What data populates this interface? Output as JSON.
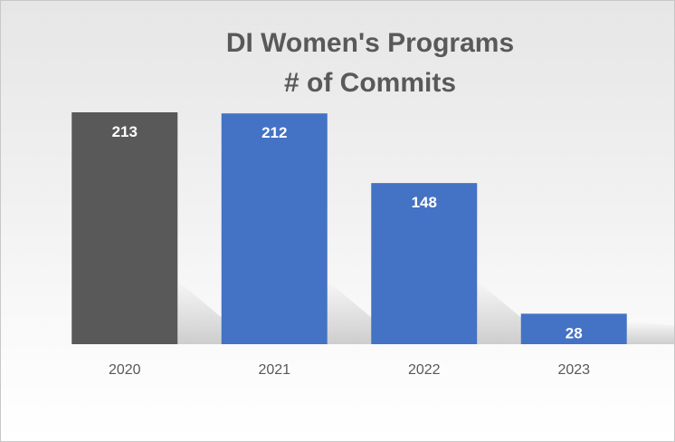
{
  "chart_data": {
    "type": "bar",
    "title": "DI Women's Programs",
    "subtitle": "# of Commits",
    "categories": [
      "2020",
      "2021",
      "2022",
      "2023"
    ],
    "values": [
      213,
      212,
      148,
      28
    ],
    "colors": [
      "#595959",
      "#4472c4",
      "#4472c4",
      "#4472c4"
    ],
    "data_labels": [
      "213",
      "212",
      "148",
      "28"
    ],
    "ylim": [
      0,
      213
    ],
    "grid": false,
    "legend": "none"
  }
}
